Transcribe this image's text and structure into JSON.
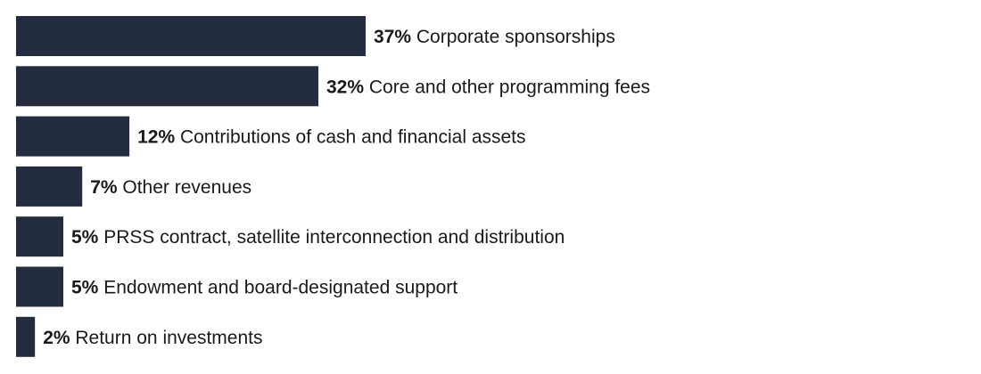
{
  "colors": {
    "bar": "#232d3f",
    "text": "#1a1a1a",
    "background": "#ffffff"
  },
  "chart_data": {
    "type": "bar",
    "orientation": "horizontal",
    "value_suffix": "%",
    "categories": [
      "Corporate sponsorships",
      "Core and other programming fees",
      "Contributions of cash and financial assets",
      "Other revenues",
      "PRSS contract, satellite interconnection and distribution",
      "Endowment and board-designated support",
      "Return on investments"
    ],
    "values": [
      37,
      32,
      12,
      7,
      5,
      5,
      2
    ],
    "labels": [
      {
        "value_text": "37%",
        "category": "Corporate sponsorships"
      },
      {
        "value_text": "32%",
        "category": "Core and other programming fees"
      },
      {
        "value_text": "12%",
        "category": "Contributions of cash and financial assets"
      },
      {
        "value_text": "7%",
        "category": "Other revenues"
      },
      {
        "value_text": "5%",
        "category": "PRSS contract, satellite interconnection and distribution"
      },
      {
        "value_text": "5%",
        "category": "Endowment and board-designated support"
      },
      {
        "value_text": "2%",
        "category": "Return on investments"
      }
    ],
    "title": "",
    "xlabel": "",
    "ylabel": "",
    "xlim": [
      0,
      37
    ],
    "grid": false,
    "legend": "none"
  }
}
